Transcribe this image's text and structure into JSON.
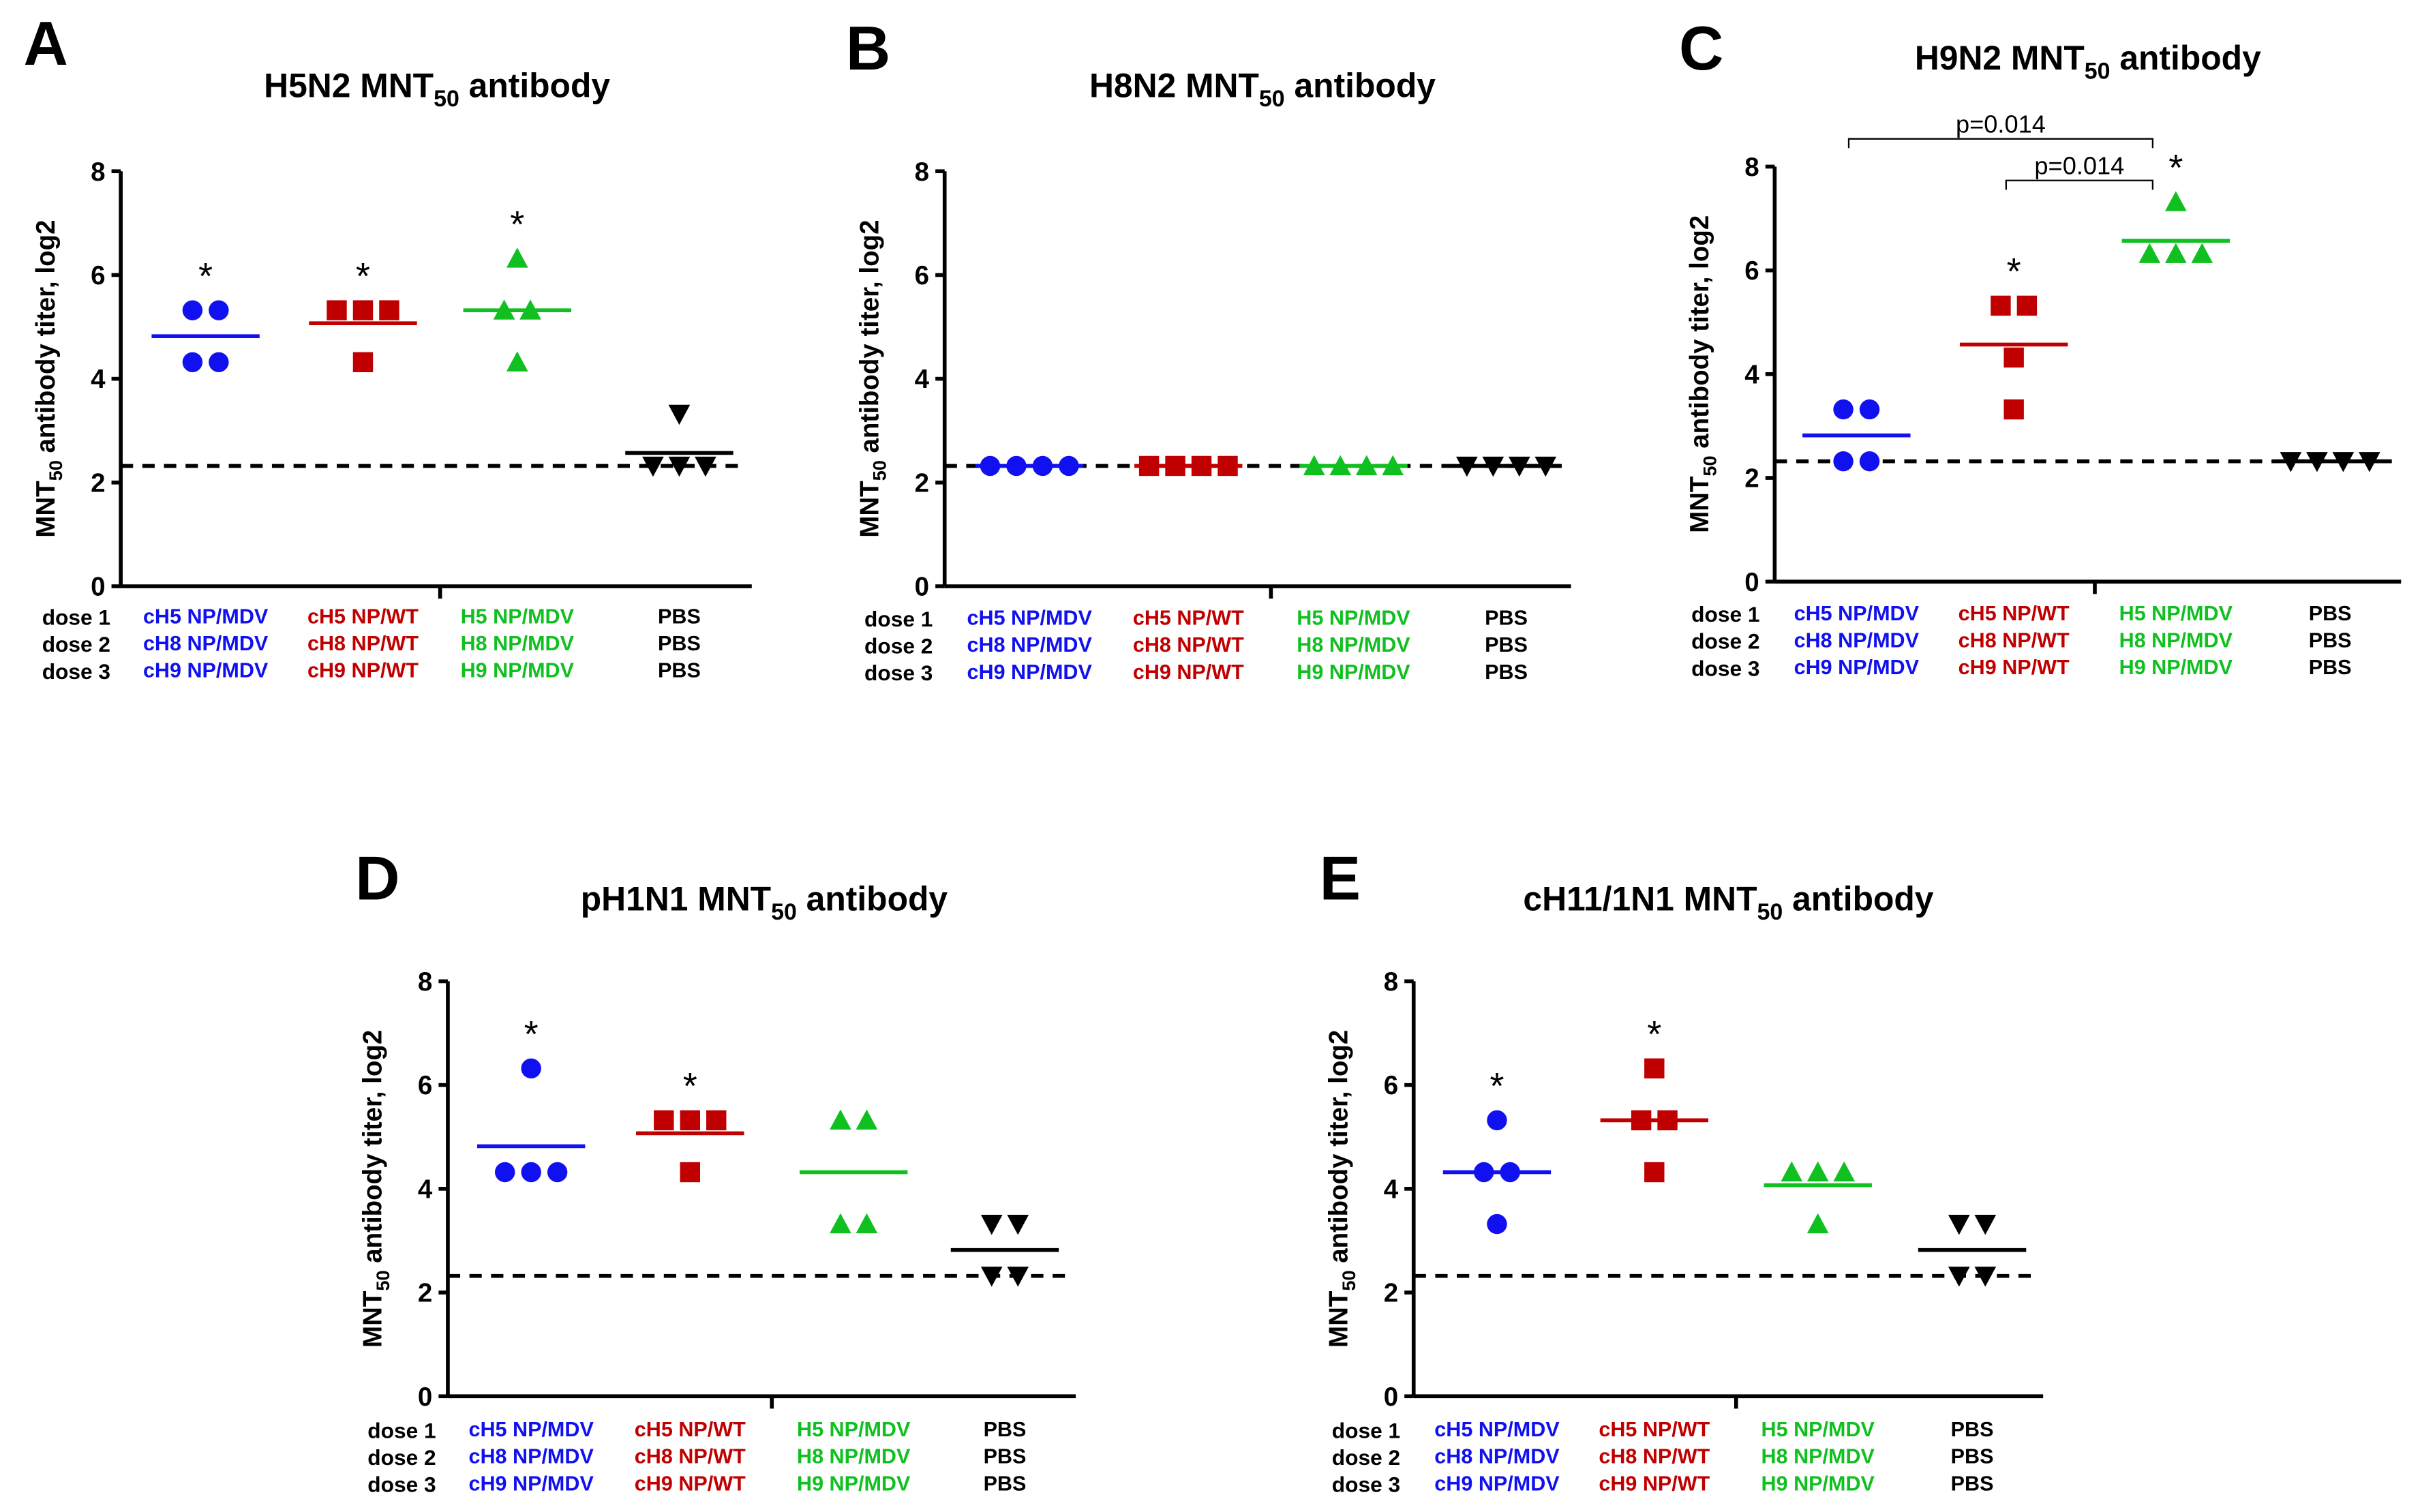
{
  "colors": {
    "blue": "#1010f0",
    "red": "#c00000",
    "green": "#10c020",
    "black": "#000000"
  },
  "dose_labels": [
    "dose 1",
    "dose 2",
    "dose 3"
  ],
  "group_labels": [
    [
      "cH5 NP/MDV",
      "cH8 NP/MDV",
      "cH9 NP/MDV"
    ],
    [
      "cH5 NP/WT",
      "cH8 NP/WT",
      "cH9 NP/WT"
    ],
    [
      "H5 NP/MDV",
      "H8 NP/MDV",
      "H9 NP/MDV"
    ],
    [
      "PBS",
      "PBS",
      "PBS"
    ]
  ],
  "chart_data": [
    {
      "type": "scatter",
      "letter": "A",
      "title": "H5N2 MNT",
      "title_sub": "50",
      "title_end": " antibody",
      "ylabel": "MNT",
      "ylabel_sub": "50",
      "ylabel_end": " antibody titer, log2",
      "ylim": [
        0,
        8
      ],
      "yticks": [
        0,
        2,
        4,
        6,
        8
      ],
      "detection_limit": 2.32,
      "groups": [
        {
          "color": "blue",
          "marker": "circle",
          "values": [
            5.32,
            5.32,
            4.32,
            4.32
          ],
          "mean": 4.82,
          "significant": true
        },
        {
          "color": "red",
          "marker": "square",
          "values": [
            5.32,
            5.32,
            5.32,
            4.32
          ],
          "mean": 5.07,
          "significant": true
        },
        {
          "color": "green",
          "marker": "triangle",
          "values": [
            6.32,
            5.32,
            5.32,
            4.32
          ],
          "mean": 5.32,
          "significant": true
        },
        {
          "color": "black",
          "marker": "triangle-down",
          "values": [
            3.32,
            2.32,
            2.32,
            2.32
          ],
          "mean": 2.57,
          "significant": false
        }
      ]
    },
    {
      "type": "scatter",
      "letter": "B",
      "title": "H8N2 MNT",
      "title_sub": "50",
      "title_end": " antibody",
      "ylabel": "MNT",
      "ylabel_sub": "50",
      "ylabel_end": " antibody titer, log2",
      "ylim": [
        0,
        8
      ],
      "yticks": [
        0,
        2,
        4,
        6,
        8
      ],
      "detection_limit": 2.32,
      "groups": [
        {
          "color": "blue",
          "marker": "circle",
          "values": [
            2.32,
            2.32,
            2.32,
            2.32
          ],
          "mean": 2.32,
          "significant": false
        },
        {
          "color": "red",
          "marker": "square",
          "values": [
            2.32,
            2.32,
            2.32,
            2.32
          ],
          "mean": 2.32,
          "significant": false
        },
        {
          "color": "green",
          "marker": "triangle",
          "values": [
            2.32,
            2.32,
            2.32,
            2.32
          ],
          "mean": 2.32,
          "significant": false
        },
        {
          "color": "black",
          "marker": "triangle-down",
          "values": [
            2.32,
            2.32,
            2.32,
            2.32
          ],
          "mean": 2.32,
          "significant": false
        }
      ]
    },
    {
      "type": "scatter",
      "letter": "C",
      "title": "H9N2 MNT",
      "title_sub": "50",
      "title_end": " antibody",
      "ylabel": "MNT",
      "ylabel_sub": "50",
      "ylabel_end": " antibody titer, log2",
      "ylim": [
        0,
        8
      ],
      "yticks": [
        0,
        2,
        4,
        6,
        8
      ],
      "detection_limit": 2.32,
      "groups": [
        {
          "color": "blue",
          "marker": "circle",
          "values": [
            3.32,
            3.32,
            2.32,
            2.32
          ],
          "mean": 2.82,
          "significant": false
        },
        {
          "color": "red",
          "marker": "square",
          "values": [
            5.32,
            5.32,
            4.32,
            3.32
          ],
          "mean": 4.57,
          "significant": true
        },
        {
          "color": "green",
          "marker": "triangle",
          "values": [
            7.32,
            6.32,
            6.32,
            6.32
          ],
          "mean": 6.57,
          "significant": true
        },
        {
          "color": "black",
          "marker": "triangle-down",
          "values": [
            2.32,
            2.32,
            2.32,
            2.32
          ],
          "mean": 2.32,
          "significant": false
        }
      ],
      "brackets": [
        {
          "from": 0,
          "to": 2,
          "label": "p=0.014"
        },
        {
          "from": 1,
          "to": 2,
          "label": "p=0.014"
        }
      ]
    },
    {
      "type": "scatter",
      "letter": "D",
      "title": "pH1N1 MNT",
      "title_sub": "50",
      "title_end": " antibody",
      "ylabel": "MNT",
      "ylabel_sub": "50",
      "ylabel_end": " antibody titer, log2",
      "ylim": [
        0,
        8
      ],
      "yticks": [
        0,
        2,
        4,
        6,
        8
      ],
      "detection_limit": 2.32,
      "groups": [
        {
          "color": "blue",
          "marker": "circle",
          "values": [
            6.32,
            4.32,
            4.32,
            4.32
          ],
          "mean": 4.82,
          "significant": true
        },
        {
          "color": "red",
          "marker": "square",
          "values": [
            5.32,
            5.32,
            5.32,
            4.32
          ],
          "mean": 5.07,
          "significant": true
        },
        {
          "color": "green",
          "marker": "triangle",
          "values": [
            5.32,
            5.32,
            3.32,
            3.32
          ],
          "mean": 4.32,
          "significant": false
        },
        {
          "color": "black",
          "marker": "triangle-down",
          "values": [
            3.32,
            3.32,
            2.32,
            2.32
          ],
          "mean": 2.82,
          "significant": false
        }
      ]
    },
    {
      "type": "scatter",
      "letter": "E",
      "title": "cH11/1N1 MNT",
      "title_sub": "50",
      "title_end": " antibody",
      "ylabel": "MNT",
      "ylabel_sub": "50",
      "ylabel_end": " antibody titer, log2",
      "ylim": [
        0,
        8
      ],
      "yticks": [
        0,
        2,
        4,
        6,
        8
      ],
      "detection_limit": 2.32,
      "groups": [
        {
          "color": "blue",
          "marker": "circle",
          "values": [
            5.32,
            4.32,
            4.32,
            3.32
          ],
          "mean": 4.32,
          "significant": true
        },
        {
          "color": "red",
          "marker": "square",
          "values": [
            6.32,
            5.32,
            5.32,
            4.32
          ],
          "mean": 5.32,
          "significant": true
        },
        {
          "color": "green",
          "marker": "triangle",
          "values": [
            4.32,
            4.32,
            4.32,
            3.32
          ],
          "mean": 4.07,
          "significant": false
        },
        {
          "color": "black",
          "marker": "triangle-down",
          "values": [
            3.32,
            3.32,
            2.32,
            2.32
          ],
          "mean": 2.82,
          "significant": false
        }
      ]
    }
  ],
  "significance_symbol": "*"
}
